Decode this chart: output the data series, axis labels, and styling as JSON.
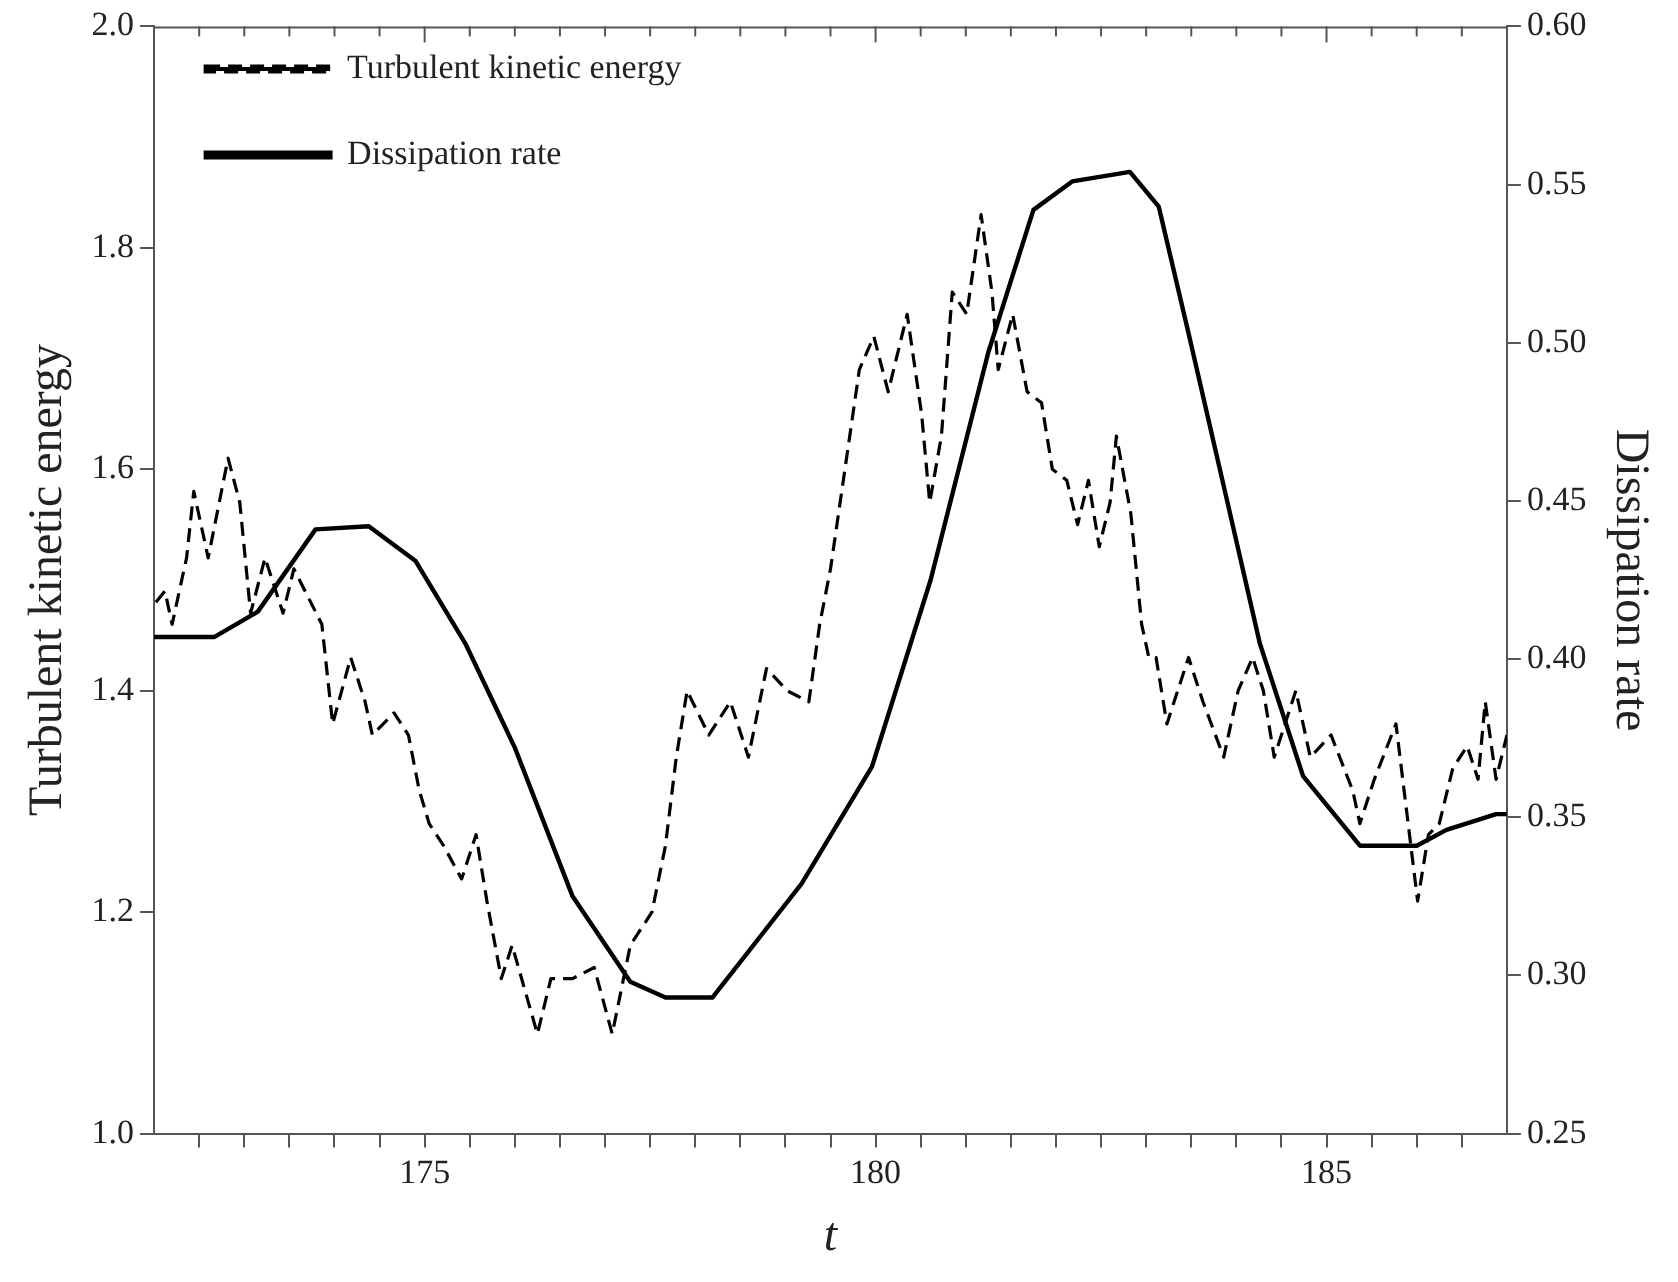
{
  "chart_data": {
    "type": "line",
    "xlabel": "t",
    "ylabel": "Turbulent kinetic energy",
    "y2label": "Dissipation rate",
    "xlim": [
      172,
      187
    ],
    "xticks": [
      {
        "value": 172.5,
        "label": null
      },
      {
        "value": 173,
        "label": null
      },
      {
        "value": 173.5,
        "label": null
      },
      {
        "value": 174,
        "label": null
      },
      {
        "value": 174.5,
        "label": null
      },
      175,
      {
        "value": 175.5,
        "label": null
      },
      {
        "value": 176,
        "label": null
      },
      {
        "value": 176.5,
        "label": null
      },
      {
        "value": 177,
        "label": null
      },
      {
        "value": 177.5,
        "label": null
      },
      {
        "value": 178,
        "label": null
      },
      {
        "value": 178.5,
        "label": null
      },
      {
        "value": 179,
        "label": null
      },
      {
        "value": 179.5,
        "label": null
      },
      180,
      {
        "value": 180.5,
        "label": null
      },
      {
        "value": 181,
        "label": null
      },
      {
        "value": 181.5,
        "label": null
      },
      {
        "value": 182,
        "label": null
      },
      {
        "value": 182.5,
        "label": null
      },
      {
        "value": 183,
        "label": null
      },
      {
        "value": 183.5,
        "label": null
      },
      {
        "value": 184,
        "label": null
      },
      {
        "value": 184.5,
        "label": null
      },
      185,
      {
        "value": 185.5,
        "label": null
      },
      {
        "value": 186,
        "label": null
      },
      {
        "value": 186.5,
        "label": null
      }
    ],
    "ylim": [
      1,
      2
    ],
    "yticks": [
      {
        "value": 1,
        "label": "1.0"
      },
      1.2,
      1.4,
      1.6,
      1.8,
      {
        "value": 2,
        "label": "2.0"
      }
    ],
    "y2lim": [
      0.25,
      0.6
    ],
    "y2ticks": [
      0.25,
      {
        "value": 0.3,
        "label": "0.30"
      },
      0.35,
      {
        "value": 0.4,
        "label": "0.40"
      },
      0.45,
      {
        "value": 0.5,
        "label": "0.50"
      },
      0.55,
      {
        "value": 0.6,
        "label": "0.60"
      }
    ],
    "grid": false,
    "legend": "top left",
    "marker": "none",
    "series": [
      {
        "name": "Turbulent kinetic energy",
        "color": "#000000",
        "line_style": "dashed",
        "x": [
          172.02,
          172.12,
          172.2,
          172.36,
          172.44,
          172.6,
          172.82,
          172.95,
          173.07,
          173.23,
          173.43,
          173.55,
          173.86,
          173.98,
          174.18,
          174.34,
          174.42,
          174.66,
          174.82,
          174.94,
          175.05,
          175.21,
          175.41,
          175.57,
          175.69,
          175.85,
          175.97,
          176.25,
          176.4,
          176.64,
          176.88,
          177.08,
          177.28,
          177.52,
          177.67,
          177.79,
          177.91,
          178.15,
          178.39,
          178.59,
          178.79,
          179.02,
          179.26,
          179.38,
          179.5,
          179.66,
          179.82,
          179.98,
          180.14,
          180.35,
          180.51,
          180.6,
          180.73,
          180.85,
          181.01,
          181.17,
          181.29,
          181.36,
          181.52,
          181.68,
          181.84,
          181.96,
          182.12,
          182.24,
          182.36,
          182.48,
          182.6,
          182.67,
          182.83,
          182.95,
          183.03,
          183.11,
          183.23,
          183.47,
          183.63,
          183.86,
          184.02,
          184.18,
          184.3,
          184.42,
          184.66,
          184.82,
          185.05,
          185.29,
          185.37,
          185.53,
          185.77,
          185.89,
          186.01,
          186.13,
          186.25,
          186.4,
          186.56,
          186.68,
          186.76,
          186.88,
          187
        ],
        "values": [
          1.48,
          1.49,
          1.46,
          1.52,
          1.58,
          1.52,
          1.61,
          1.57,
          1.47,
          1.52,
          1.47,
          1.51,
          1.46,
          1.37,
          1.43,
          1.39,
          1.36,
          1.38,
          1.36,
          1.31,
          1.28,
          1.26,
          1.23,
          1.27,
          1.21,
          1.14,
          1.17,
          1.09,
          1.14,
          1.14,
          1.15,
          1.09,
          1.17,
          1.2,
          1.26,
          1.34,
          1.4,
          1.36,
          1.39,
          1.34,
          1.42,
          1.4,
          1.39,
          1.46,
          1.51,
          1.6,
          1.69,
          1.72,
          1.67,
          1.74,
          1.65,
          1.57,
          1.63,
          1.76,
          1.74,
          1.83,
          1.76,
          1.69,
          1.74,
          1.67,
          1.66,
          1.6,
          1.59,
          1.55,
          1.59,
          1.53,
          1.57,
          1.63,
          1.56,
          1.46,
          1.43,
          1.43,
          1.37,
          1.43,
          1.39,
          1.34,
          1.4,
          1.43,
          1.4,
          1.34,
          1.4,
          1.34,
          1.36,
          1.31,
          1.28,
          1.32,
          1.37,
          1.29,
          1.21,
          1.27,
          1.28,
          1.33,
          1.35,
          1.32,
          1.39,
          1.32,
          1.36
        ]
      },
      {
        "name": "Dissipation rate",
        "color": "#000000",
        "line_style": "solid",
        "axis": "y2",
        "x": [
          172,
          172.67,
          173.15,
          173.79,
          174.38,
          174.9,
          175.45,
          176,
          176.64,
          177.28,
          177.67,
          178.19,
          179.18,
          179.96,
          180.61,
          181.25,
          181.75,
          182.18,
          182.82,
          183.14,
          183.47,
          183.89,
          184.26,
          184.74,
          185.37,
          186,
          186.33,
          186.88,
          187
        ],
        "values": [
          0.407,
          0.407,
          0.415,
          0.441,
          0.442,
          0.431,
          0.405,
          0.372,
          0.325,
          0.298,
          0.293,
          0.293,
          0.329,
          0.366,
          0.425,
          0.497,
          0.542,
          0.551,
          0.554,
          0.543,
          0.503,
          0.451,
          0.405,
          0.363,
          0.341,
          0.341,
          0.346,
          0.351,
          0.351
        ]
      }
    ]
  }
}
